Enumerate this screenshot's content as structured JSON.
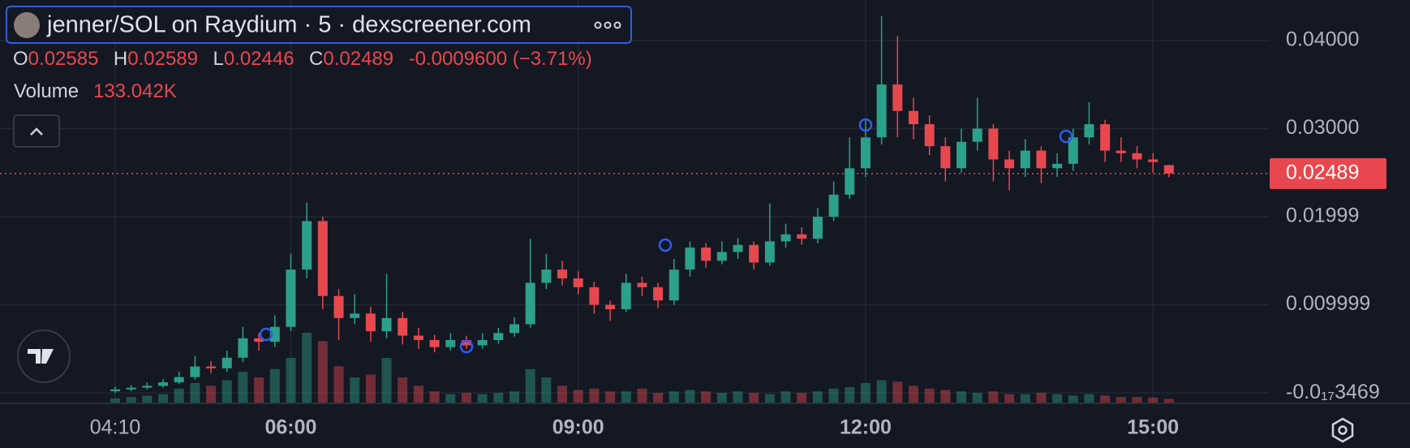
{
  "header": {
    "title": "jenner/SOL on Raydium · 5 · dexscreener.com",
    "o_label": "O",
    "h_label": "H",
    "l_label": "L",
    "c_label": "C",
    "change": "-0.0009600 (−3.71%)",
    "volume_label": "Volume",
    "volume_value": "133.042K"
  },
  "chart_data": {
    "type": "candlestick",
    "x": [
      "04:10",
      "04:20",
      "04:30",
      "04:40",
      "04:50",
      "05:00",
      "05:10",
      "05:20",
      "05:30",
      "05:40",
      "05:50",
      "06:00",
      "06:10",
      "06:20",
      "06:30",
      "06:40",
      "06:50",
      "07:00",
      "07:10",
      "07:20",
      "07:30",
      "07:40",
      "07:50",
      "08:00",
      "08:10",
      "08:20",
      "08:30",
      "08:40",
      "08:50",
      "09:00",
      "09:10",
      "09:20",
      "09:30",
      "09:40",
      "09:50",
      "10:00",
      "10:10",
      "10:20",
      "10:30",
      "10:40",
      "10:50",
      "11:00",
      "11:10",
      "11:20",
      "11:30",
      "11:40",
      "11:50",
      "12:00",
      "12:10",
      "12:20",
      "12:30",
      "12:40",
      "12:50",
      "13:00",
      "13:10",
      "13:20",
      "13:30",
      "13:40",
      "13:50",
      "14:00",
      "14:10",
      "14:20",
      "14:30",
      "14:40",
      "14:50",
      "15:00",
      "15:10"
    ],
    "open": [
      0.0002,
      0.0004,
      0.0006,
      0.0008,
      0.0012,
      0.0018,
      0.003,
      0.0028,
      0.004,
      0.0062,
      0.0058,
      0.0075,
      0.014,
      0.0195,
      0.011,
      0.0085,
      0.009,
      0.007,
      0.0085,
      0.0065,
      0.006,
      0.0052,
      0.006,
      0.0054,
      0.006,
      0.0068,
      0.0078,
      0.0125,
      0.014,
      0.013,
      0.012,
      0.01,
      0.0095,
      0.0125,
      0.012,
      0.0105,
      0.014,
      0.0165,
      0.015,
      0.016,
      0.0168,
      0.0148,
      0.0172,
      0.018,
      0.0175,
      0.02,
      0.0225,
      0.0255,
      0.029,
      0.035,
      0.032,
      0.0305,
      0.028,
      0.0255,
      0.0285,
      0.03,
      0.0265,
      0.0255,
      0.0275,
      0.0255,
      0.026,
      0.029,
      0.0305,
      0.0275,
      0.0272,
      0.0265,
      0.02585
    ],
    "high": [
      0.0007,
      0.0009,
      0.0012,
      0.0016,
      0.0024,
      0.0042,
      0.0036,
      0.0048,
      0.0075,
      0.0068,
      0.0088,
      0.0158,
      0.0216,
      0.02,
      0.0118,
      0.0112,
      0.0098,
      0.0135,
      0.0092,
      0.0074,
      0.0066,
      0.0068,
      0.0065,
      0.0068,
      0.0074,
      0.0086,
      0.0175,
      0.0158,
      0.015,
      0.0138,
      0.0126,
      0.0105,
      0.0135,
      0.0132,
      0.0125,
      0.0152,
      0.0172,
      0.017,
      0.0172,
      0.0176,
      0.0172,
      0.0215,
      0.0192,
      0.0188,
      0.021,
      0.024,
      0.029,
      0.031,
      0.0428,
      0.0405,
      0.0335,
      0.0315,
      0.029,
      0.03,
      0.0335,
      0.0305,
      0.0275,
      0.0288,
      0.028,
      0.0272,
      0.03,
      0.033,
      0.031,
      0.029,
      0.028,
      0.0272,
      0.02589
    ],
    "low": [
      0,
      0.0002,
      0.0004,
      0.0006,
      0.001,
      0.0015,
      0.0022,
      0.0024,
      0.0035,
      0.0048,
      0.0052,
      0.007,
      0.013,
      0.0095,
      0.006,
      0.0078,
      0.0058,
      0.0062,
      0.0055,
      0.005,
      0.0046,
      0.0048,
      0.005,
      0.005,
      0.0056,
      0.0064,
      0.0074,
      0.0118,
      0.0122,
      0.0112,
      0.009,
      0.0082,
      0.0092,
      0.011,
      0.0096,
      0.01,
      0.0132,
      0.0142,
      0.0146,
      0.0152,
      0.014,
      0.0144,
      0.0165,
      0.0168,
      0.017,
      0.0195,
      0.022,
      0.0245,
      0.0282,
      0.029,
      0.0288,
      0.027,
      0.024,
      0.025,
      0.0275,
      0.024,
      0.023,
      0.0245,
      0.0238,
      0.0245,
      0.0252,
      0.0282,
      0.0262,
      0.0262,
      0.0255,
      0.025,
      0.02446
    ],
    "close": [
      0.0004,
      0.0006,
      0.0008,
      0.0012,
      0.0018,
      0.003,
      0.0028,
      0.004,
      0.0062,
      0.0058,
      0.0075,
      0.014,
      0.0195,
      0.011,
      0.0085,
      0.009,
      0.007,
      0.0085,
      0.0065,
      0.006,
      0.0052,
      0.006,
      0.0054,
      0.006,
      0.0068,
      0.0078,
      0.0125,
      0.014,
      0.013,
      0.012,
      0.01,
      0.0095,
      0.0125,
      0.012,
      0.0105,
      0.014,
      0.0165,
      0.015,
      0.016,
      0.0168,
      0.0148,
      0.0172,
      0.018,
      0.0175,
      0.02,
      0.0225,
      0.0255,
      0.029,
      0.035,
      0.032,
      0.0305,
      0.028,
      0.0255,
      0.0285,
      0.03,
      0.0265,
      0.0255,
      0.0275,
      0.0255,
      0.026,
      0.029,
      0.0305,
      0.0275,
      0.0272,
      0.0265,
      0.0262,
      0.02489
    ],
    "volume": [
      150000,
      200000,
      250000,
      300000,
      500000,
      700000,
      600000,
      800000,
      1100000,
      900000,
      1200000,
      1600000,
      2500000,
      2200000,
      1300000,
      900000,
      1000000,
      1600000,
      900000,
      600000,
      400000,
      300000,
      350000,
      300000,
      350000,
      400000,
      1200000,
      900000,
      600000,
      450000,
      500000,
      400000,
      400000,
      500000,
      350000,
      400000,
      450000,
      400000,
      350000,
      400000,
      350000,
      300000,
      400000,
      350000,
      400000,
      500000,
      550000,
      700000,
      800000,
      750000,
      600000,
      500000,
      450000,
      400000,
      350000,
      400000,
      300000,
      300000,
      350000,
      300000,
      250000,
      300000,
      250000,
      200000,
      200000,
      180000,
      133042
    ],
    "up_color": "#2ba08a",
    "down_color": "#e8474e",
    "ylim": [
      -0.001,
      0.0445
    ],
    "yticks": [
      {
        "value": 0.04,
        "label": "0.04000"
      },
      {
        "value": 0.03,
        "label": "0.03000"
      },
      0.01999,
      0.009999,
      {
        "value": -3.469e-18,
        "label": "-0.0₁₇3469"
      }
    ],
    "xticks": [
      "04:10",
      "06:00",
      "09:00",
      "12:00",
      "15:00"
    ],
    "grid": true
  }
}
